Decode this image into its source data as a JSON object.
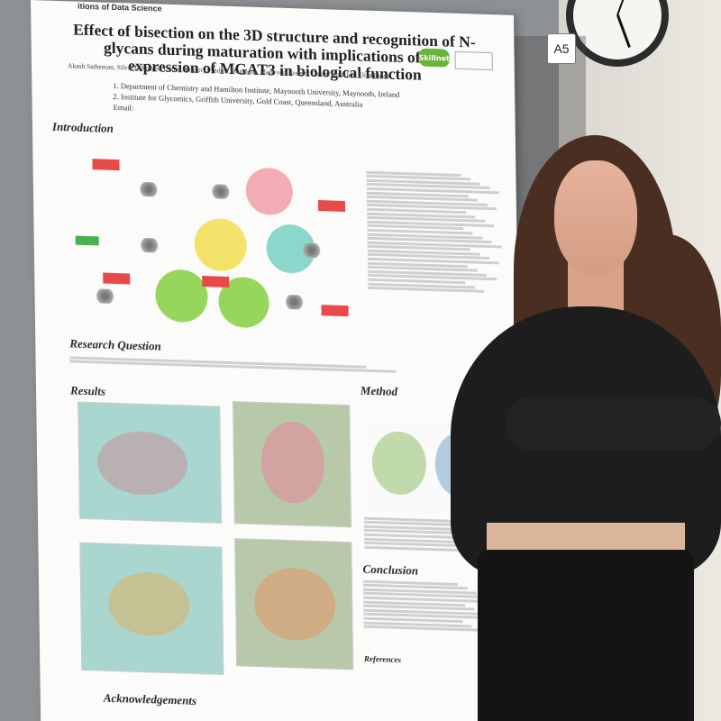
{
  "poster": {
    "institution_header": "itions of Data Science",
    "title": "Effect of bisection on the 3D structure and recognition of N-glycans during maturation with implications of the expression of MGAT3 in biological function",
    "authors": "Akash Satheesan, Silvia D'Andrea, Carl A. Fogarty, Andrea Maggioni, Mark von Itzstein, Daniel Kolarich, Elisa Fadda",
    "affiliations": [
      "1.  Department of Chemistry and Hamilton Institute, Maynooth University, Maynooth, Ireland",
      "2.  Institute for Glycomics, Griffith University, Gold Coast, Queensland, Australia"
    ],
    "email": "Email:",
    "logo_text": "Skillnet",
    "board_label": "A5",
    "sections": {
      "introduction": "Introduction",
      "research_question": "Research Question",
      "results": "Results",
      "method": "Method",
      "conclusion": "Conclusion",
      "acknowledgements": "Acknowledgements",
      "references": "References"
    }
  },
  "colors": {
    "board": "#8e9194",
    "poster": "#fbfbfa",
    "circle_pink": "#f2a3ac",
    "circle_yellow": "#f2e05a",
    "circle_teal": "#7fd3c6",
    "circle_green": "#8bd24a",
    "accent_red": "#e84a4a",
    "surface_teal": "#a9d7cf",
    "surface_green": "#b7c9a8"
  }
}
